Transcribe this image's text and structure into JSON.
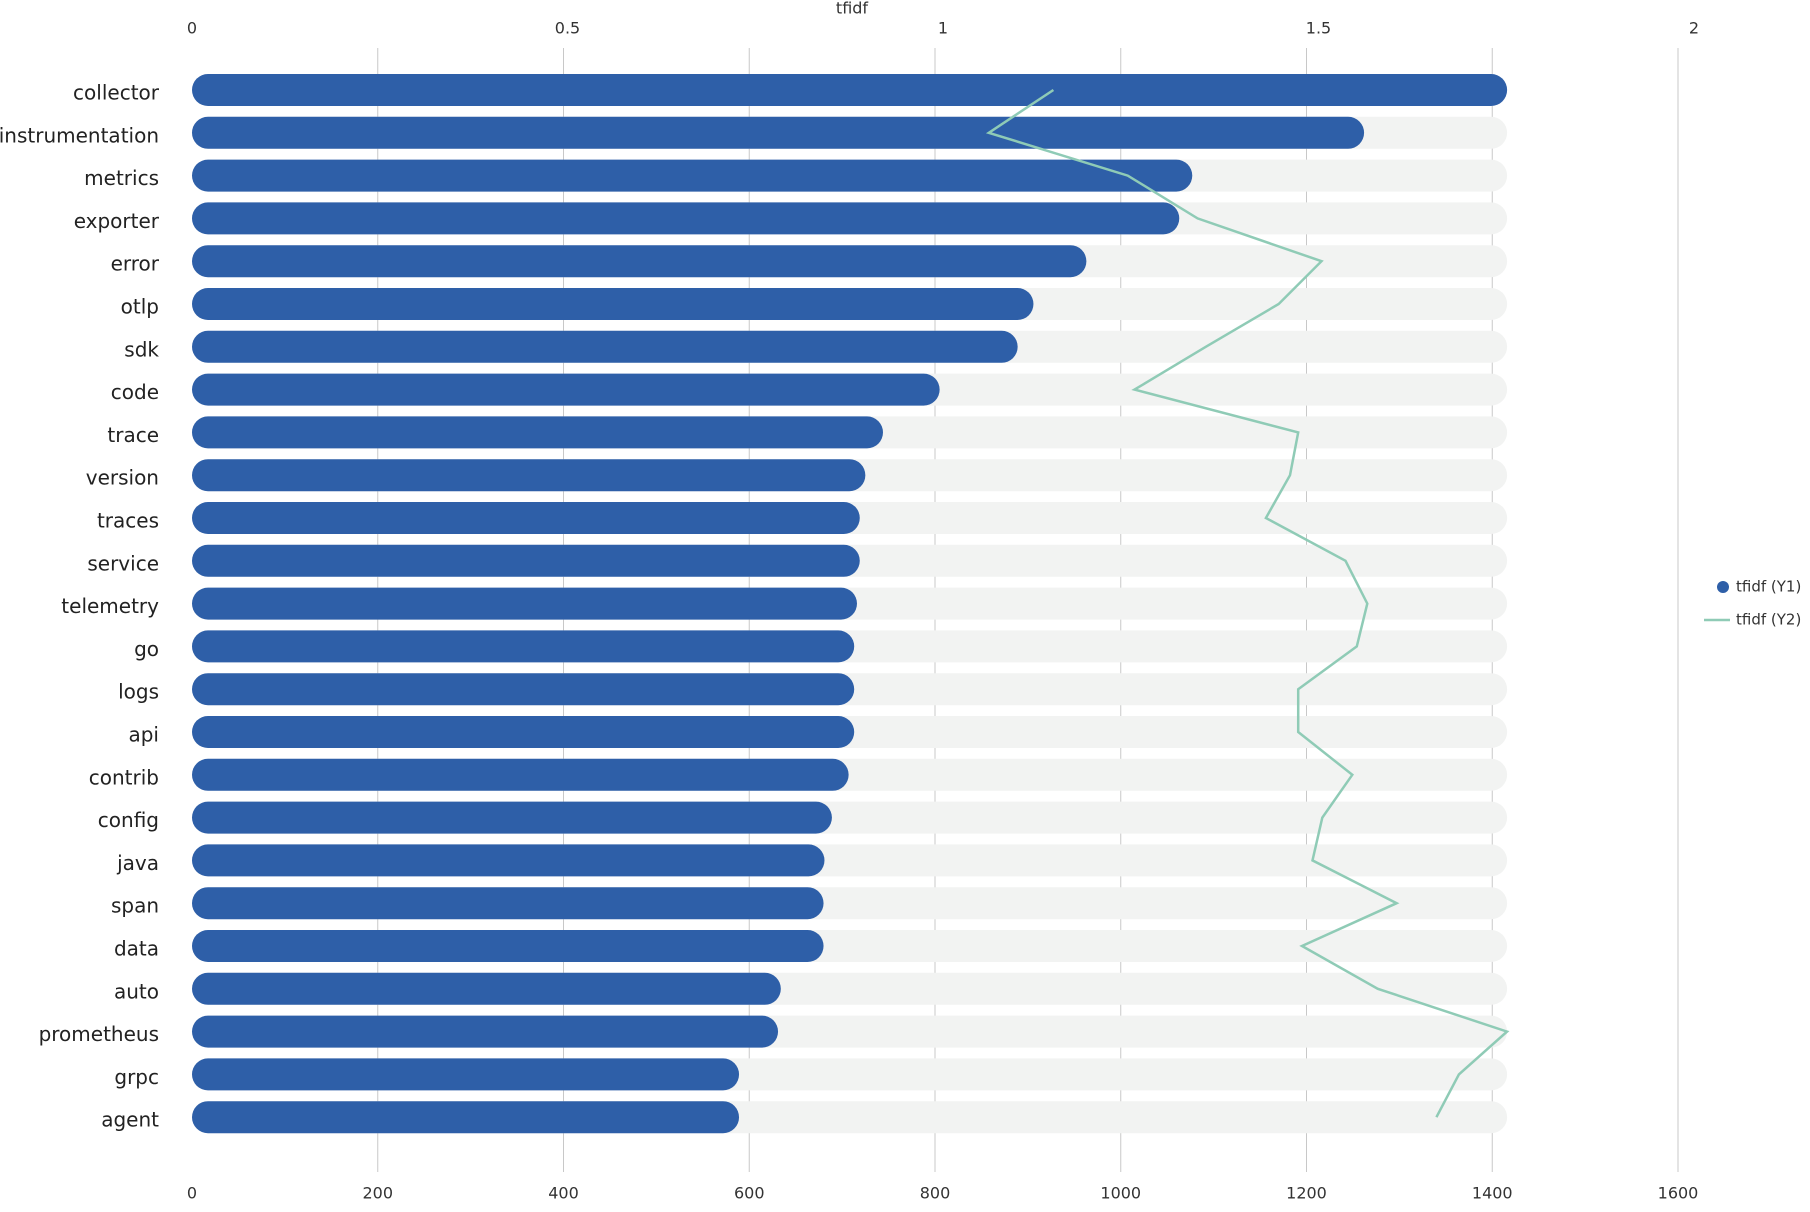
{
  "chart_data": {
    "type": "bar",
    "orientation": "horizontal",
    "x2_label": "tfidf",
    "categories": [
      "collector",
      "instrumentation",
      "metrics",
      "exporter",
      "error",
      "otlp",
      "sdk",
      "code",
      "trace",
      "version",
      "traces",
      "service",
      "telemetry",
      "go",
      "logs",
      "api",
      "contrib",
      "config",
      "java",
      "span",
      "data",
      "auto",
      "prometheus",
      "grpc",
      "agent"
    ],
    "series": [
      {
        "name": "tfidf (Y1)",
        "color": "#2e5fa8",
        "values": [
          1416,
          1262,
          1077,
          1063,
          963,
          906,
          889,
          805,
          744,
          725,
          719,
          719,
          716,
          713,
          713,
          713,
          707,
          689,
          681,
          680,
          680,
          634,
          631,
          589,
          589
        ]
      },
      {
        "name": "tfidf (Y2)",
        "color": "#8fcbb6",
        "type": "line",
        "axis": "x2",
        "values": [
          1.147,
          1.061,
          1.246,
          1.339,
          1.504,
          1.447,
          1.35,
          1.255,
          1.473,
          1.462,
          1.43,
          1.536,
          1.565,
          1.551,
          1.473,
          1.473,
          1.545,
          1.505,
          1.492,
          1.604,
          1.478,
          1.579,
          1.751,
          1.687,
          1.657
        ]
      }
    ],
    "xlim": [
      0,
      1600
    ],
    "xticks": [
      0,
      200,
      400,
      600,
      800,
      1000,
      1200,
      1400,
      1600
    ],
    "x2lim": [
      0,
      2
    ],
    "x2ticks": [
      0,
      0.5,
      1,
      1.5,
      2
    ],
    "grid": true,
    "legend": "right"
  }
}
